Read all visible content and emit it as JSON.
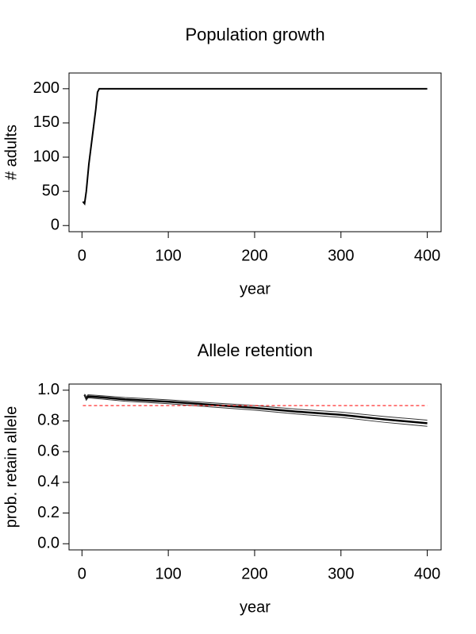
{
  "chart_data": [
    {
      "type": "line",
      "title": "Population growth",
      "xlabel": "year",
      "ylabel": "# adults",
      "xlim": [
        -15,
        416
      ],
      "ylim": [
        -9,
        223
      ],
      "xticks": [
        0,
        100,
        200,
        300,
        400
      ],
      "yticks": [
        0,
        50,
        100,
        150,
        200
      ],
      "series": [
        {
          "color": "#000000",
          "linewidth": 2,
          "linestyle": "solid",
          "x": [
            1,
            3,
            5,
            8,
            12,
            16,
            18,
            20,
            400
          ],
          "values": [
            35,
            32,
            50,
            90,
            130,
            170,
            195,
            200,
            200
          ]
        }
      ]
    },
    {
      "type": "line",
      "title": "Allele retention",
      "xlabel": "year",
      "ylabel": "prob. retain allele",
      "xlim": [
        -15,
        416
      ],
      "ylim": [
        -0.04,
        1.04
      ],
      "xticks": [
        0,
        100,
        200,
        300,
        400
      ],
      "yticks": [
        {
          "value": 0,
          "label": "0.0"
        },
        0.2,
        0.4,
        0.6,
        0.8,
        {
          "value": 1,
          "label": "1.0"
        }
      ],
      "series": [
        {
          "color": "#000000",
          "linewidth": 2.5,
          "linestyle": "solid",
          "x": [
            3,
            5,
            7,
            20,
            50,
            100,
            150,
            200,
            250,
            300,
            350,
            400
          ],
          "values": [
            0.97,
            0.945,
            0.96,
            0.955,
            0.94,
            0.925,
            0.905,
            0.885,
            0.86,
            0.84,
            0.81,
            0.785
          ]
        },
        {
          "color": "#333333",
          "linewidth": 1,
          "linestyle": "solid",
          "x": [
            3,
            5,
            7,
            20,
            50,
            100,
            150,
            200,
            250,
            300,
            350,
            400
          ],
          "values": [
            0.975,
            0.955,
            0.97,
            0.965,
            0.952,
            0.937,
            0.918,
            0.9,
            0.876,
            0.857,
            0.829,
            0.805
          ]
        },
        {
          "color": "#333333",
          "linewidth": 1,
          "linestyle": "solid",
          "x": [
            3,
            5,
            7,
            20,
            50,
            100,
            150,
            200,
            250,
            300,
            350,
            400
          ],
          "values": [
            0.965,
            0.935,
            0.95,
            0.944,
            0.928,
            0.912,
            0.891,
            0.87,
            0.844,
            0.823,
            0.791,
            0.765
          ]
        },
        {
          "color": "#ff0000",
          "linewidth": 1,
          "linestyle": "dashed",
          "x": [
            1,
            400
          ],
          "values": [
            0.9,
            0.9
          ]
        }
      ]
    }
  ]
}
